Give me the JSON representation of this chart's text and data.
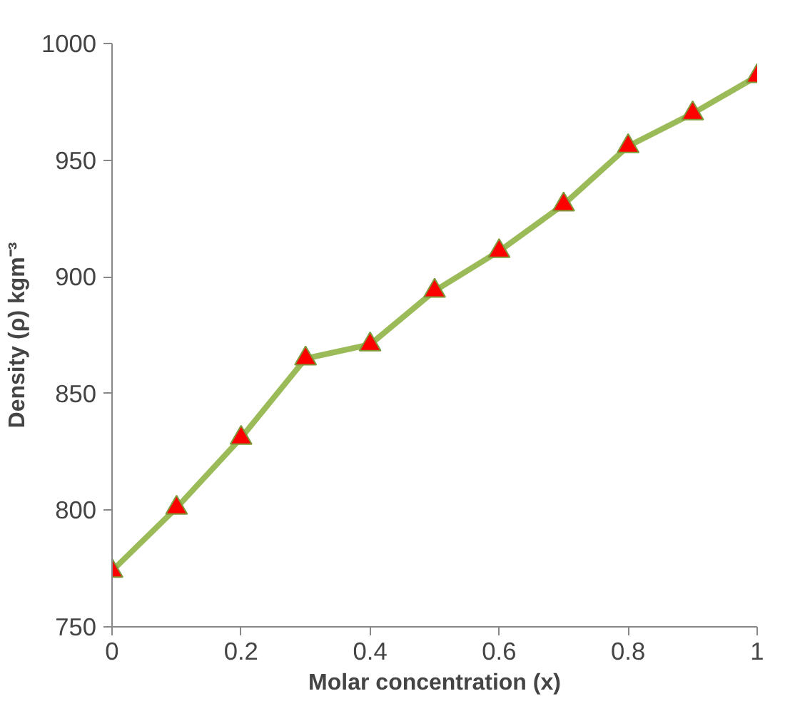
{
  "chart_data": {
    "type": "line",
    "xlabel": "Molar concentration (x)",
    "ylabel": "Density (ρ) kgm⁻³",
    "x": [
      0,
      0.1,
      0.2,
      0.3,
      0.4,
      0.5,
      0.6,
      0.7,
      0.8,
      0.9,
      1
    ],
    "series": [
      {
        "color": "#9bbb59",
        "values": [
          774,
          801,
          831,
          865,
          871,
          894,
          911,
          931,
          956,
          970,
          986
        ]
      }
    ],
    "xlim": [
      0,
      1
    ],
    "xticks": [
      0,
      0.2,
      0.4,
      0.6,
      0.8,
      1
    ],
    "ylim": [
      750,
      1000
    ],
    "yticks": [
      750,
      800,
      850,
      900,
      950,
      1000
    ],
    "grid": false,
    "marker": "triangle",
    "line_style": "solid"
  }
}
